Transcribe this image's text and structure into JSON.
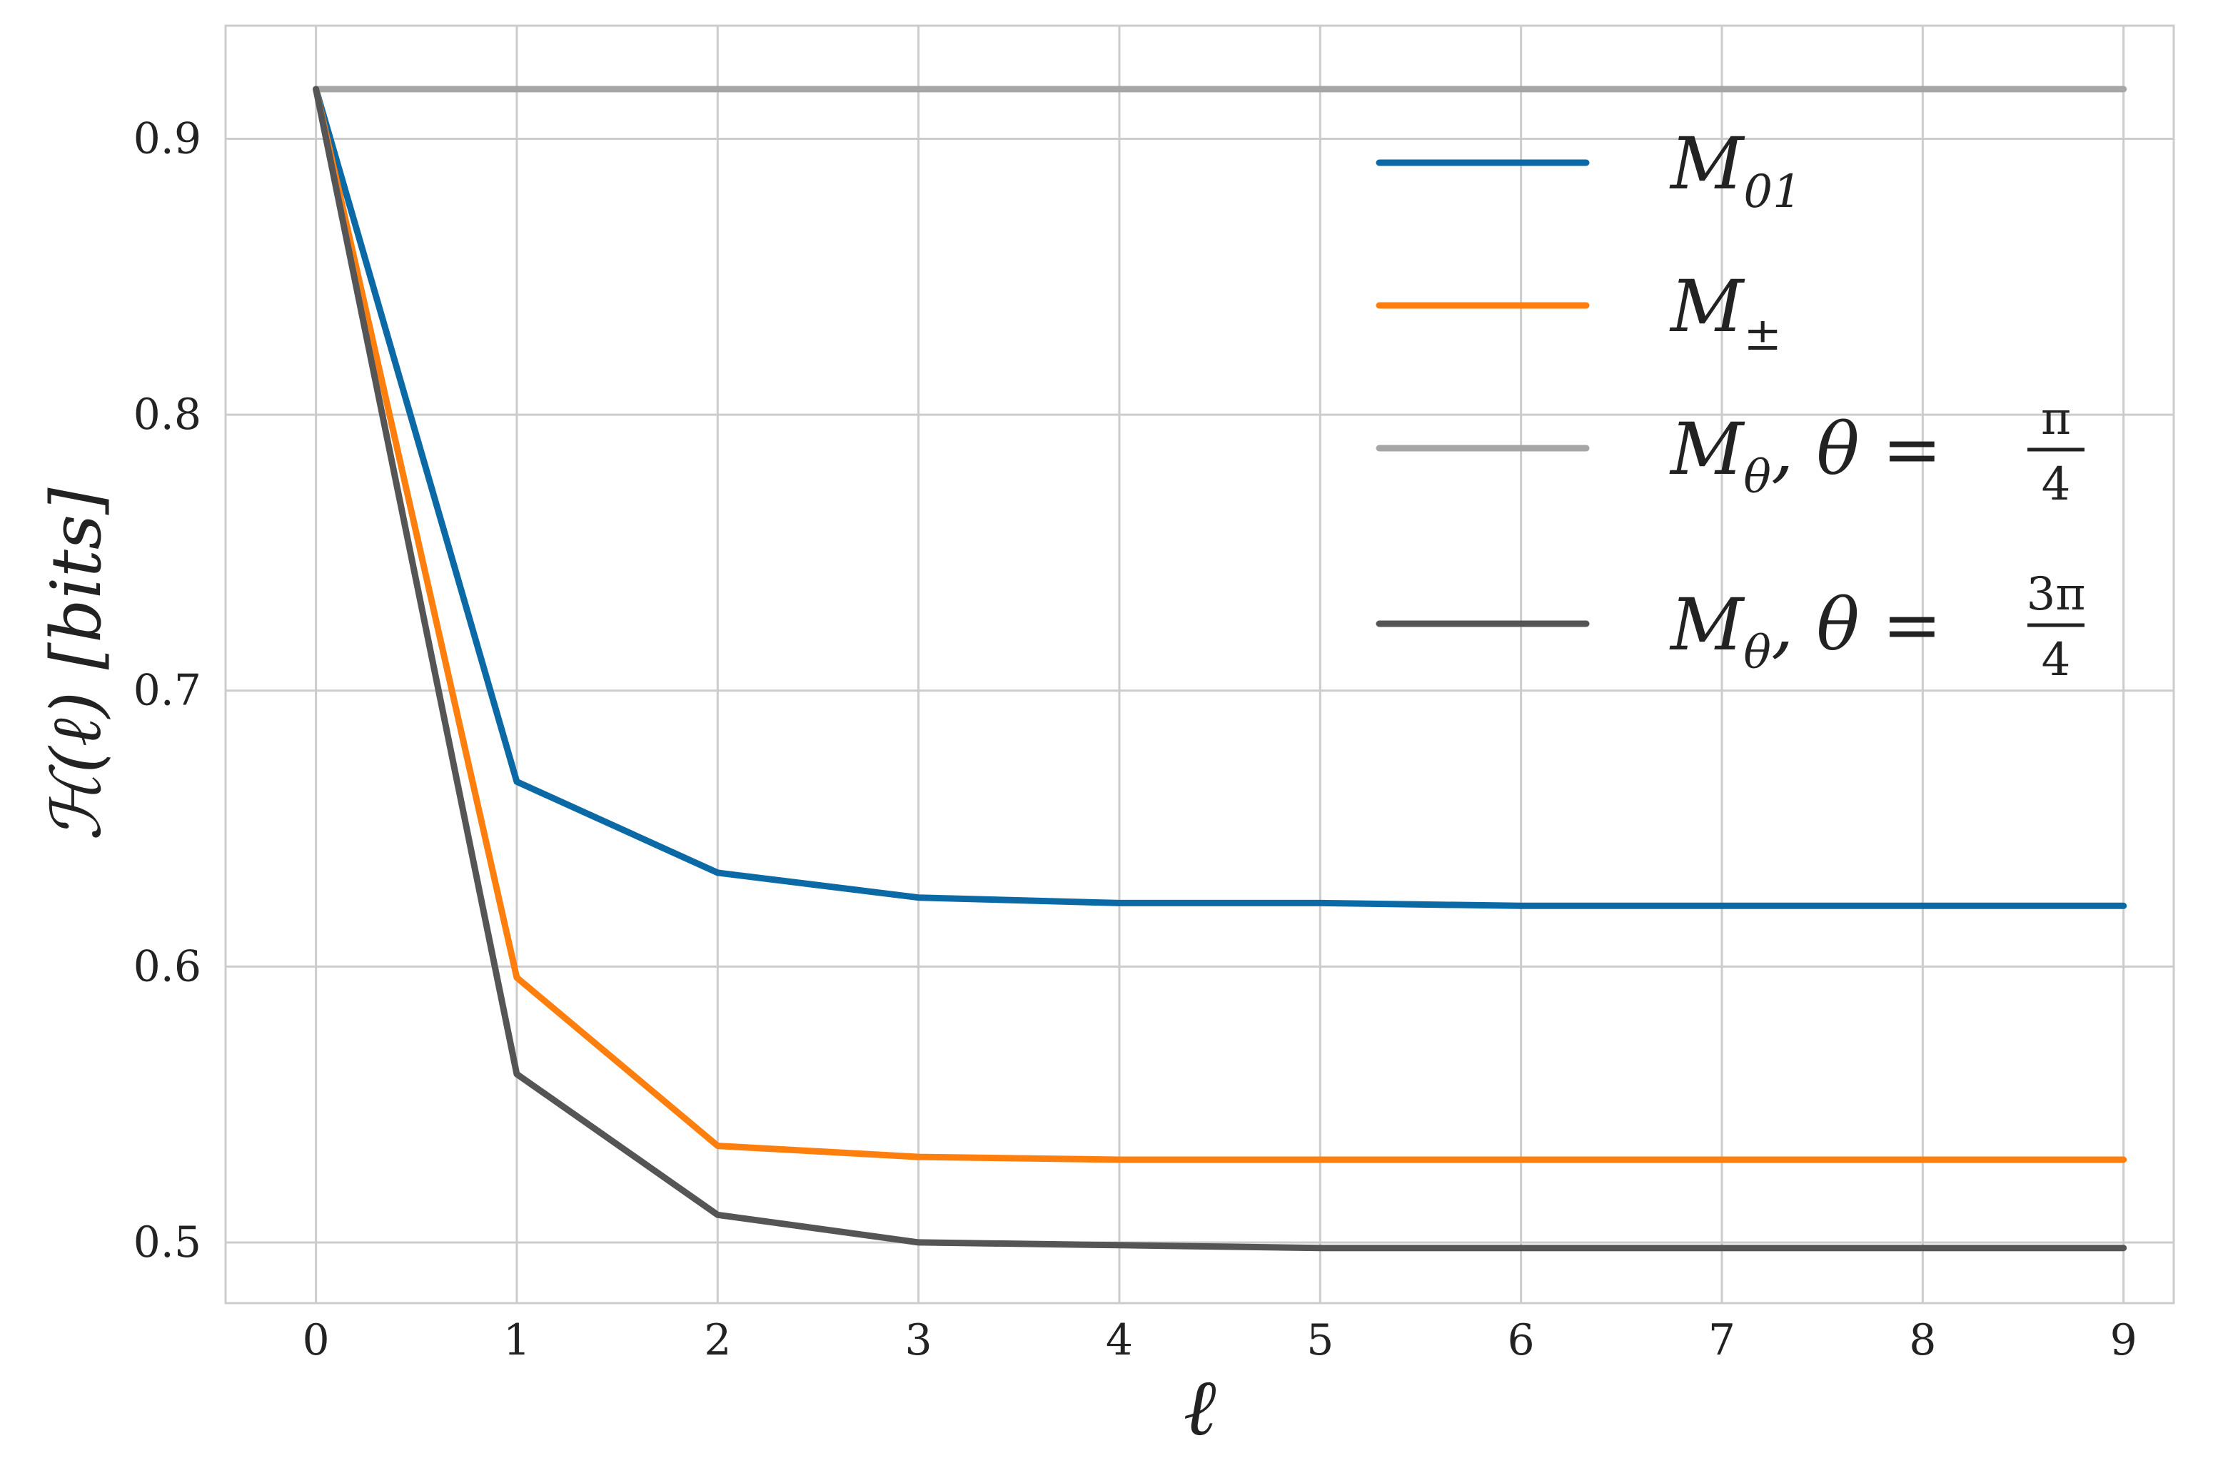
{
  "chart_data": {
    "type": "line",
    "title": "",
    "xlabel": "ℓ",
    "ylabel": "ℋ(ℓ) [bits]",
    "x": [
      0,
      1,
      2,
      3,
      4,
      5,
      6,
      7,
      8,
      9
    ],
    "xlim": [
      -0.45,
      9.25
    ],
    "ylim": [
      0.478,
      0.941
    ],
    "xticks": [
      "0",
      "1",
      "2",
      "3",
      "4",
      "5",
      "6",
      "7",
      "8",
      "9"
    ],
    "yticks": [
      "0.5",
      "0.6",
      "0.7",
      "0.8",
      "0.9"
    ],
    "ytick_values": [
      0.5,
      0.6,
      0.7,
      0.8,
      0.9
    ],
    "grid": true,
    "legend_position": "top-right",
    "series": [
      {
        "name": "M01",
        "legend": {
          "main": "M",
          "sub": "01",
          "suffix": "",
          "frac_num": "",
          "frac_den": ""
        },
        "color": "#0b6aa6",
        "values": [
          0.918,
          0.667,
          0.634,
          0.625,
          0.623,
          0.623,
          0.622,
          0.622,
          0.622,
          0.622
        ]
      },
      {
        "name": "M±",
        "legend": {
          "main": "M",
          "sub": "±",
          "suffix": "",
          "frac_num": "",
          "frac_den": ""
        },
        "color": "#ff7f0e",
        "values": [
          0.918,
          0.596,
          0.535,
          0.531,
          0.53,
          0.53,
          0.53,
          0.53,
          0.53,
          0.53
        ]
      },
      {
        "name": "Mθ, θ = π/4",
        "legend": {
          "main": "M",
          "sub": "θ",
          "suffix": ", θ =",
          "frac_num": "π",
          "frac_den": "4"
        },
        "color": "#a6a6a6",
        "values": [
          0.918,
          0.918,
          0.918,
          0.918,
          0.918,
          0.918,
          0.918,
          0.918,
          0.918,
          0.918
        ]
      },
      {
        "name": "Mθ, θ = 3π/4",
        "legend": {
          "main": "M",
          "sub": "θ",
          "suffix": ", θ =",
          "frac_num": "3π",
          "frac_den": "4"
        },
        "color": "#555555",
        "values": [
          0.918,
          0.561,
          0.51,
          0.5,
          0.499,
          0.498,
          0.498,
          0.498,
          0.498,
          0.498
        ]
      }
    ]
  }
}
